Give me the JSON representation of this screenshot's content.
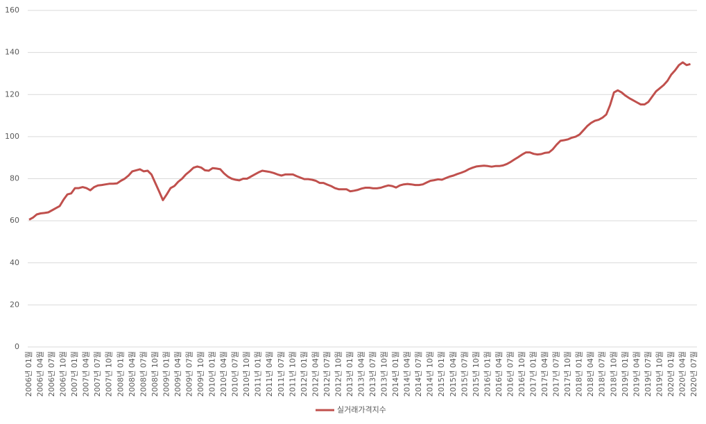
{
  "chart_data": {
    "type": "line",
    "categories": [
      "2006년 01월",
      null,
      null,
      "2006년 04월",
      null,
      null,
      "2006년 07월",
      null,
      null,
      "2006년 10월",
      null,
      null,
      "2007년 01월",
      null,
      null,
      "2007년 04월",
      null,
      null,
      "2007년 07월",
      null,
      null,
      "2007년 10월",
      null,
      null,
      "2008년 01월",
      null,
      null,
      "2008년 04월",
      null,
      null,
      "2008년 07월",
      null,
      null,
      "2008년 10월",
      null,
      null,
      "2009년 01월",
      null,
      null,
      "2009년 04월",
      null,
      null,
      "2009년 07월",
      null,
      null,
      "2009년 10월",
      null,
      null,
      "2010년 01월",
      null,
      null,
      "2010년 04월",
      null,
      null,
      "2010년 07월",
      null,
      null,
      "2010년 10월",
      null,
      null,
      "2011년 01월",
      null,
      null,
      "2011년 04월",
      null,
      null,
      "2011년 07월",
      null,
      null,
      "2011년 10월",
      null,
      null,
      "2012년 01월",
      null,
      null,
      "2012년 04월",
      null,
      null,
      "2012년 07월",
      null,
      null,
      "2012년 10월",
      null,
      null,
      "2013년 01월",
      null,
      null,
      "2013년 04월",
      null,
      null,
      "2013년 07월",
      null,
      null,
      "2013년 10월",
      null,
      null,
      "2014년 01월",
      null,
      null,
      "2014년 04월",
      null,
      null,
      "2014년 07월",
      null,
      null,
      "2014년 10월",
      null,
      null,
      "2015년 01월",
      null,
      null,
      "2015년 04월",
      null,
      null,
      "2015년 07월",
      null,
      null,
      "2015년 10월",
      null,
      null,
      "2016년 01월",
      null,
      null,
      "2016년 04월",
      null,
      null,
      "2016년 07월",
      null,
      null,
      "2016년 10월",
      null,
      null,
      "2017년 01월",
      null,
      null,
      "2017년 04월",
      null,
      null,
      "2017년 07월",
      null,
      null,
      "2017년 10월",
      null,
      null,
      "2018년 01월",
      null,
      null,
      "2018년 04월",
      null,
      null,
      "2018년 07월",
      null,
      null,
      "2018년 10월",
      null,
      null,
      "2019년 01월",
      null,
      null,
      "2019년 04월",
      null,
      null,
      "2019년 07월",
      null,
      null,
      "2019년 10월",
      null,
      null,
      "2020년 01월",
      null,
      null,
      "2020년 04월",
      null,
      null,
      "2020년 07월"
    ],
    "series": [
      {
        "name": "실거래가격지수",
        "color": "#c0504d",
        "values": [
          60.5,
          61.5,
          63,
          63.5,
          63.7,
          64,
          65,
          66,
          67,
          70,
          72.5,
          73,
          75.5,
          75.5,
          76,
          75.5,
          74.5,
          76,
          76.8,
          77,
          77.3,
          77.6,
          77.6,
          77.8,
          79,
          80,
          81.5,
          83.5,
          84,
          84.5,
          83.5,
          83.8,
          82,
          78,
          74,
          69.8,
          72.5,
          75.5,
          76.5,
          78.5,
          80,
          82,
          83.5,
          85.2,
          85.8,
          85.3,
          84,
          83.8,
          85,
          84.8,
          84.5,
          82.5,
          81,
          80,
          79.5,
          79.2,
          80,
          80,
          81,
          82,
          83,
          83.8,
          83.5,
          83.2,
          82.7,
          82,
          81.5,
          82,
          82,
          82,
          81.2,
          80.5,
          79.8,
          79.8,
          79.5,
          79,
          78,
          78,
          77.2,
          76.5,
          75.5,
          75,
          75,
          75,
          74,
          74.3,
          74.7,
          75.3,
          75.7,
          75.7,
          75.4,
          75.4,
          75.7,
          76.3,
          76.8,
          76.5,
          75.8,
          76.8,
          77.3,
          77.5,
          77.3,
          77,
          77,
          77.3,
          78.2,
          79,
          79.3,
          79.7,
          79.5,
          80.3,
          81,
          81.5,
          82.2,
          82.8,
          83.5,
          84.5,
          85.2,
          85.8,
          86,
          86.2,
          86,
          85.7,
          86,
          86,
          86.3,
          87,
          88,
          89.2,
          90.3,
          91.5,
          92.5,
          92.5,
          91.8,
          91.5,
          91.7,
          92.3,
          92.5,
          94,
          96.2,
          98,
          98.3,
          98.7,
          99.5,
          100,
          101,
          103,
          105,
          106.5,
          107.5,
          108,
          109,
          110.5,
          115,
          121,
          122,
          121,
          119.5,
          118.3,
          117.3,
          116.3,
          115.3,
          115.3,
          116.5,
          119,
          121.5,
          123,
          124.5,
          126.5,
          129.5,
          131.5,
          134,
          135.3,
          134,
          134.5,
          null
        ]
      }
    ],
    "ylim": [
      0,
      160
    ],
    "yticks": [
      0,
      20,
      40,
      60,
      80,
      100,
      120,
      140,
      160
    ],
    "grid": true,
    "legend": "bottom"
  }
}
